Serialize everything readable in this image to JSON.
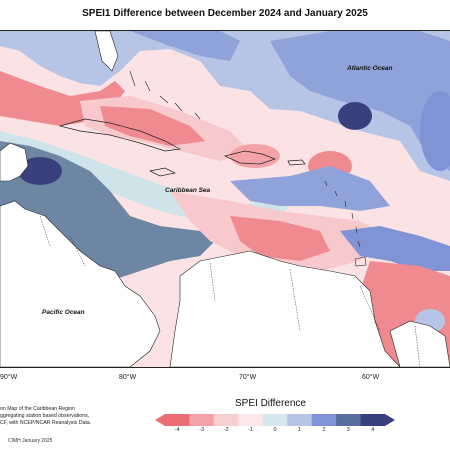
{
  "title": "SPEI1 Difference between December 2024 and January 2025",
  "places": {
    "atlantic": "Atlantic Ocean",
    "caribbean": "Caribbean Sea",
    "pacific": "Pacific Ocean"
  },
  "longitude_labels": [
    "90°W",
    "80°W",
    "70°W",
    "60°W"
  ],
  "description_lines": [
    "on Map of the Caribbean Region",
    "ggregating station based observations,",
    "CF, with NCEP/NCAR Reanalysis Data."
  ],
  "credit": "CIMH January 2025",
  "legend": {
    "title": "SPEI Difference",
    "ticks": [
      "-4",
      "-3",
      "-2",
      "-1",
      "0",
      "1",
      "2",
      "3",
      "4"
    ],
    "colors": [
      "#ec6e74",
      "#f3a3a7",
      "#f8cfd1",
      "#fbe6e8",
      "#d6e6ee",
      "#b6c5e6",
      "#7f93d6",
      "#576d9b",
      "#3a3f7d"
    ]
  },
  "palette": {
    "red": "#ef8a90",
    "pink": "#f7c9cc",
    "lightpink": "#fbe3e5",
    "teal": "#cfe3ea",
    "lightblue": "#b6c5e6",
    "blue": "#8fa3da",
    "slate": "#6d86a3",
    "navy": "#3a3f7d"
  }
}
